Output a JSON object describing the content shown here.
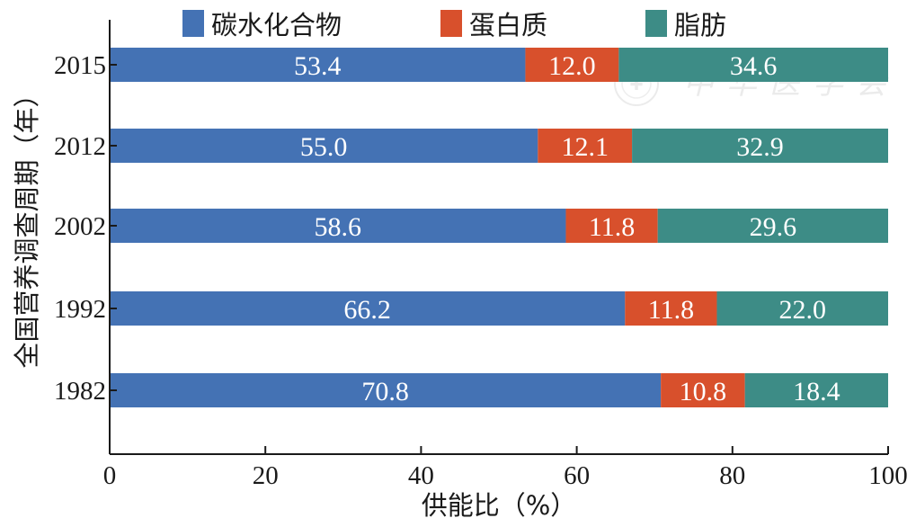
{
  "chart_data": {
    "type": "bar",
    "orientation": "horizontal",
    "stacked": true,
    "categories": [
      "2015",
      "2012",
      "2002",
      "1992",
      "1982"
    ],
    "series": [
      {
        "name": "碳水化合物",
        "values": [
          53.4,
          55.0,
          58.6,
          66.2,
          70.8
        ],
        "color": "#4472b4"
      },
      {
        "name": "蛋白质",
        "values": [
          12.0,
          12.1,
          11.8,
          11.8,
          10.8
        ],
        "color": "#d8502c"
      },
      {
        "name": "脂肪",
        "values": [
          34.6,
          32.9,
          29.6,
          22.0,
          18.4
        ],
        "color": "#3d8c86"
      }
    ],
    "xlabel": "供能比（%）",
    "ylabel": "全国营养调查周期（年）",
    "xlim": [
      0,
      100
    ],
    "xticks": [
      0,
      20,
      40,
      60,
      80,
      100
    ],
    "legend_position": "top",
    "grid": false,
    "watermark": "中华医学会"
  }
}
